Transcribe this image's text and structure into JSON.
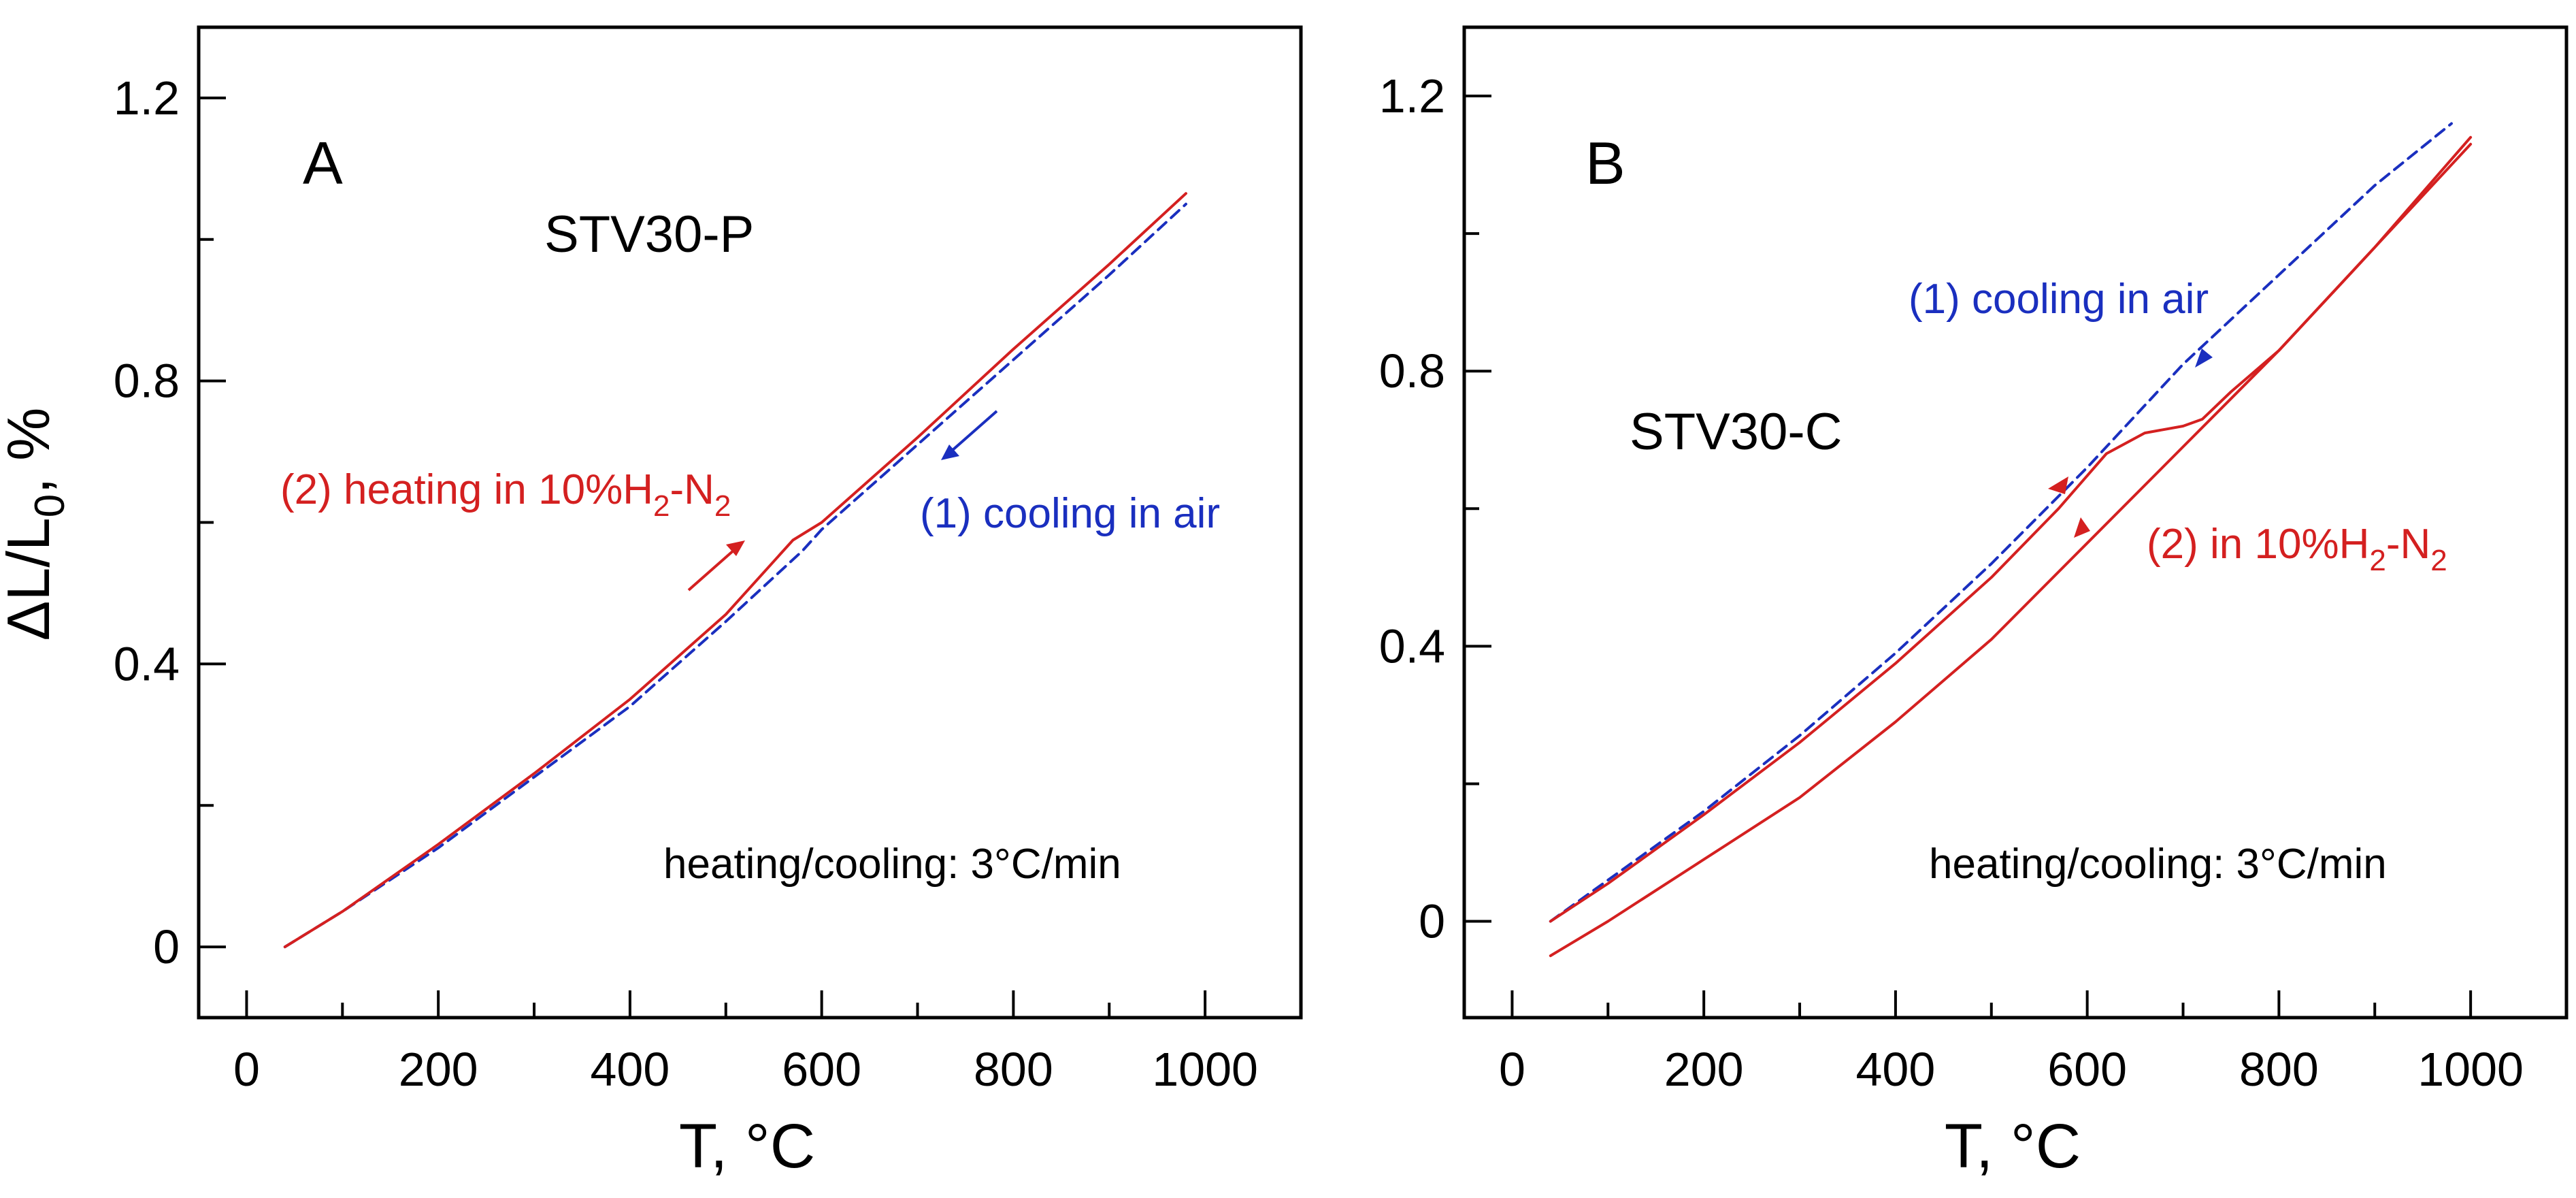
{
  "chart_data": [
    {
      "panel": "A",
      "type": "line",
      "sample_label": "STV30-P",
      "condition_note": "heating/cooling: 3°C/min",
      "xlabel": "T, °C",
      "ylabel": "ΔL/L0, %",
      "ylabel_main": "ΔL/L",
      "ylabel_sub": "0",
      "ylabel_tail": ", %",
      "xlim": [
        -50,
        1100
      ],
      "ylim": [
        -0.1,
        1.3
      ],
      "xticks": [
        0,
        200,
        400,
        600,
        800,
        1000
      ],
      "yticks": [
        0,
        0.4,
        0.8,
        1.2
      ],
      "ytick_labels": [
        "0",
        "0.4",
        "0.8",
        "1.2"
      ],
      "grid": false,
      "colors": {
        "heating": "#d42020",
        "cooling": "#1a2fbf"
      },
      "series": [
        {
          "name": "(1) cooling in air",
          "style": "dashed",
          "color": "#1a2fbf",
          "x": [
            40,
            100,
            200,
            300,
            400,
            500,
            580,
            600,
            700,
            800,
            900,
            980
          ],
          "y": [
            0.0,
            0.05,
            0.14,
            0.24,
            0.34,
            0.46,
            0.56,
            0.59,
            0.71,
            0.83,
            0.95,
            1.05
          ]
        },
        {
          "name": "(2) heating in 10%H2-N2",
          "style": "solid",
          "color": "#d42020",
          "x": [
            40,
            100,
            200,
            300,
            400,
            500,
            570,
            600,
            700,
            800,
            900,
            980
          ],
          "y": [
            0.0,
            0.05,
            0.145,
            0.245,
            0.35,
            0.47,
            0.575,
            0.6,
            0.72,
            0.845,
            0.965,
            1.065
          ]
        }
      ],
      "annotations": [
        {
          "series": "(2) heating in 10%H2-N2",
          "prefix": "(2) heating in 10%H",
          "sub": "2",
          "suffix": "-N",
          "sub2": "2",
          "color": "#d42020"
        },
        {
          "series": "(1) cooling in air",
          "text": "(1) cooling in air",
          "color": "#1a2fbf"
        }
      ]
    },
    {
      "panel": "B",
      "type": "line",
      "sample_label": "STV30-C",
      "condition_note": "heating/cooling: 3°C/min",
      "xlabel": "T, °C",
      "xlim": [
        -50,
        1100
      ],
      "ylim": [
        -0.14,
        1.3
      ],
      "xticks": [
        0,
        200,
        400,
        600,
        800,
        1000
      ],
      "yticks": [
        0,
        0.4,
        0.8,
        1.2
      ],
      "ytick_labels": [
        "0",
        "0.4",
        "0.8",
        "1.2"
      ],
      "grid": false,
      "series": [
        {
          "name": "(1) cooling in air",
          "style": "dashed",
          "color": "#1a2fbf",
          "x": [
            40,
            100,
            200,
            300,
            400,
            500,
            600,
            700,
            800,
            900,
            980
          ],
          "y": [
            0.0,
            0.06,
            0.16,
            0.27,
            0.39,
            0.52,
            0.66,
            0.81,
            0.94,
            1.07,
            1.16
          ]
        },
        {
          "name": "(2) in 10%H2-N2 heating",
          "style": "solid",
          "color": "#d42020",
          "x": [
            40,
            100,
            200,
            300,
            400,
            500,
            570,
            620,
            660,
            700,
            720,
            750,
            800,
            900,
            1000
          ],
          "y": [
            0.0,
            0.055,
            0.155,
            0.26,
            0.375,
            0.5,
            0.6,
            0.68,
            0.71,
            0.72,
            0.73,
            0.77,
            0.83,
            0.98,
            1.14
          ]
        },
        {
          "name": "(2) in 10%H2-N2 cooling",
          "style": "solid",
          "color": "#d42020",
          "x": [
            40,
            100,
            200,
            300,
            400,
            500,
            600,
            700,
            800,
            900,
            1000
          ],
          "y": [
            -0.05,
            0.0,
            0.09,
            0.18,
            0.29,
            0.41,
            0.55,
            0.69,
            0.83,
            0.98,
            1.13
          ]
        }
      ],
      "annotations": [
        {
          "series": "(1) cooling in air",
          "text": "(1) cooling in air",
          "color": "#1a2fbf"
        },
        {
          "series": "(2) in 10%H2-N2",
          "prefix": "(2) in 10%H",
          "sub": "2",
          "suffix": "-N",
          "sub2": "2",
          "color": "#d42020"
        }
      ]
    }
  ]
}
